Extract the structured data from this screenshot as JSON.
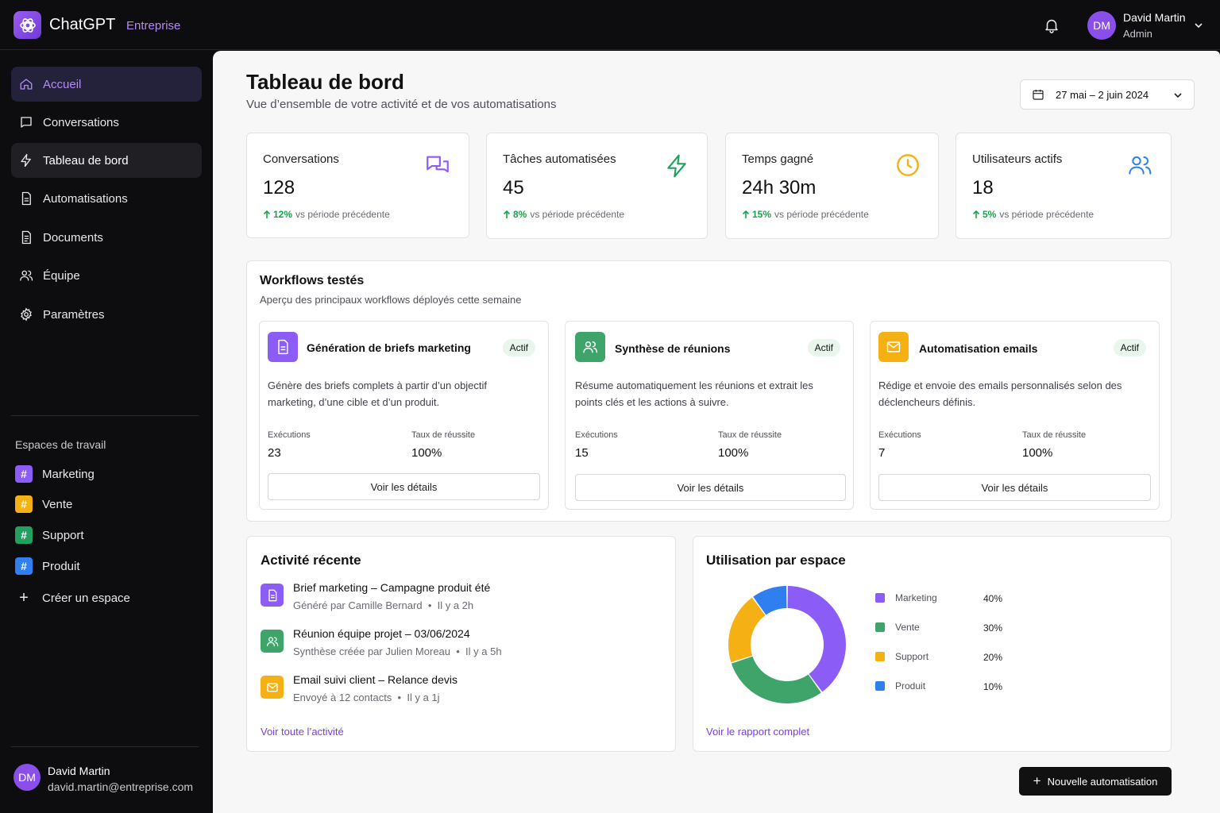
{
  "topbar": {
    "brand": "ChatGPT",
    "brand_tag": "Entreprise",
    "user": {
      "initials": "DM",
      "name": "David Martin",
      "role": "Admin"
    }
  },
  "sidebar": {
    "nav": [
      {
        "label": "Accueil",
        "icon": "home-icon"
      },
      {
        "label": "Conversations",
        "icon": "chat-icon"
      },
      {
        "label": "Tableau de bord",
        "icon": "bolt-icon"
      },
      {
        "label": "Automatisations",
        "icon": "document-icon"
      },
      {
        "label": "Documents",
        "icon": "file-icon"
      },
      {
        "label": "Équipe",
        "icon": "users-icon"
      },
      {
        "label": "Paramètres",
        "icon": "gear-icon"
      }
    ],
    "workspaces_title": "Espaces de travail",
    "workspaces": [
      {
        "label": "Marketing",
        "color": "#8b5cf6"
      },
      {
        "label": "Vente",
        "color": "#f5b014"
      },
      {
        "label": "Support",
        "color": "#22a060"
      },
      {
        "label": "Produit",
        "color": "#2f7ff0"
      }
    ],
    "create_workspace": "Créer un espace",
    "user": {
      "initials": "DM",
      "name": "David Martin",
      "email": "david.martin@entreprise.com"
    }
  },
  "header": {
    "title": "Tableau de bord",
    "subtitle": "Vue d’ensemble de votre activité et de vos automatisations",
    "date_range": "27 mai – 2 juin 2024"
  },
  "stats": [
    {
      "label": "Conversations",
      "value": "128",
      "delta": "12%",
      "delta_suffix": "vs période précédente",
      "icon": "chat-bubbles-icon",
      "color": "#8b5cf6"
    },
    {
      "label": "Tâches automatisées",
      "value": "45",
      "delta": "8%",
      "delta_suffix": "vs période précédente",
      "icon": "bolt-icon",
      "color": "#22a060"
    },
    {
      "label": "Temps gagné",
      "value": "24h 30m",
      "delta": "15%",
      "delta_suffix": "vs période précédente",
      "icon": "clock-icon",
      "color": "#f5b014"
    },
    {
      "label": "Utilisateurs actifs",
      "value": "18",
      "delta": "5%",
      "delta_suffix": "vs période précédente",
      "icon": "users-icon",
      "color": "#2f7ff0"
    }
  ],
  "workflows": {
    "title": "Workflows testés",
    "subtitle": "Aperçu des principaux workflows déployés cette semaine",
    "exec_label": "Exécutions",
    "rate_label": "Taux de réussite",
    "details_label": "Voir les détails",
    "items": [
      {
        "title": "Génération de briefs marketing",
        "badge": "Actif",
        "desc": "Génère des briefs complets à partir d’un objectif marketing, d’une cible et d’un produit.",
        "executions": "23",
        "rate": "100%",
        "color": "#8b5cf6",
        "icon": "document-icon"
      },
      {
        "title": "Synthèse de réunions",
        "badge": "Actif",
        "desc": "Résume automatiquement les réunions et extrait les points clés et les actions à suivre.",
        "executions": "15",
        "rate": "100%",
        "color": "#22a060",
        "icon": "users-icon"
      },
      {
        "title": "Automatisation emails",
        "badge": "Actif",
        "desc": "Rédige et envoie des emails personnalisés selon des déclencheurs définis.",
        "executions": "7",
        "rate": "100%",
        "color": "#f5b014",
        "icon": "mail-icon"
      }
    ]
  },
  "activity": {
    "title": "Activité récente",
    "items": [
      {
        "title": "Brief marketing – Campagne produit été",
        "meta": "Généré par Camille Bernard",
        "time": "Il y a 2h",
        "color": "#8b5cf6",
        "icon": "document-icon"
      },
      {
        "title": "Réunion équipe projet – 03/06/2024",
        "meta": "Synthèse créée par Julien Moreau",
        "time": "Il y a 5h",
        "color": "#22a060",
        "icon": "users-icon"
      },
      {
        "title": "Email suivi client – Relance devis",
        "meta": "Envoyé à 12 contacts",
        "time": "Il y a 1j",
        "color": "#f5b014",
        "icon": "mail-icon"
      }
    ],
    "link": "Voir toute l’activité"
  },
  "usage": {
    "title": "Utilisation par espace",
    "link": "Voir le rapport complet"
  },
  "chart_data": {
    "type": "pie",
    "title": "Utilisation par espace",
    "categories": [
      "Marketing",
      "Vente",
      "Support",
      "Produit"
    ],
    "values": [
      40,
      30,
      20,
      10
    ],
    "labels": [
      "40%",
      "30%",
      "20%",
      "10%"
    ],
    "colors": [
      "#8b5cf6",
      "#3fa46a",
      "#f5b014",
      "#2f7ff0"
    ],
    "legend": "right"
  },
  "actions": {
    "new_automation": "Nouvelle automatisation"
  }
}
